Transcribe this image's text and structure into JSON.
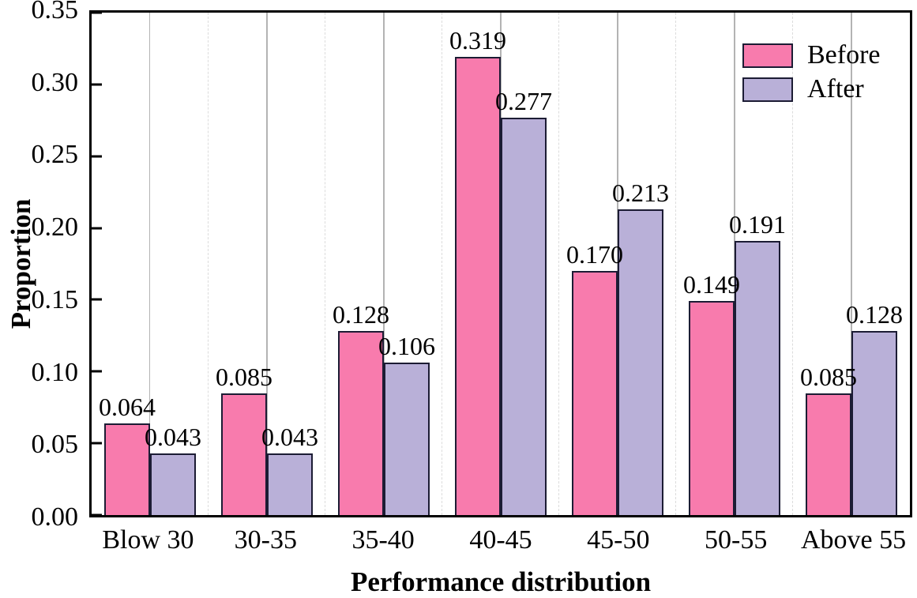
{
  "chart_data": {
    "type": "bar",
    "title": "",
    "xlabel": "Performance distribution",
    "ylabel": "Proportion",
    "categories": [
      "Blow 30",
      "30-35",
      "35-40",
      "40-45",
      "45-50",
      "50-55",
      "Above 55"
    ],
    "series": [
      {
        "name": "Before",
        "color": "#f87bad",
        "values": [
          0.064,
          0.085,
          0.128,
          0.319,
          0.17,
          0.149,
          0.085
        ],
        "labels": [
          "0.064",
          "0.085",
          "0.128",
          "0.319",
          "0.170",
          "0.149",
          "0.085"
        ]
      },
      {
        "name": "After",
        "color": "#b9b0d8",
        "values": [
          0.043,
          0.043,
          0.106,
          0.277,
          0.213,
          0.191,
          0.128
        ],
        "labels": [
          "0.043",
          "0.043",
          "0.106",
          "0.277",
          "0.213",
          "0.191",
          "0.128"
        ]
      }
    ],
    "ylim": [
      0,
      0.35
    ],
    "yticks": [
      0.0,
      0.05,
      0.1,
      0.15,
      0.2,
      0.25,
      0.3,
      0.35
    ],
    "ytick_labels": [
      "0.00",
      "0.05",
      "0.10",
      "0.15",
      "0.20",
      "0.25",
      "0.30",
      "0.35"
    ],
    "bar_edge_color": "#1c1c34",
    "grid": {
      "center_line_color": "#b3b3b3",
      "boundary_line_color": "#dcdcdc",
      "center_style": "solid",
      "boundary_style": "dashed"
    },
    "legend_position": "top-right",
    "value_labels_shown": true,
    "background": "#ffffff"
  }
}
